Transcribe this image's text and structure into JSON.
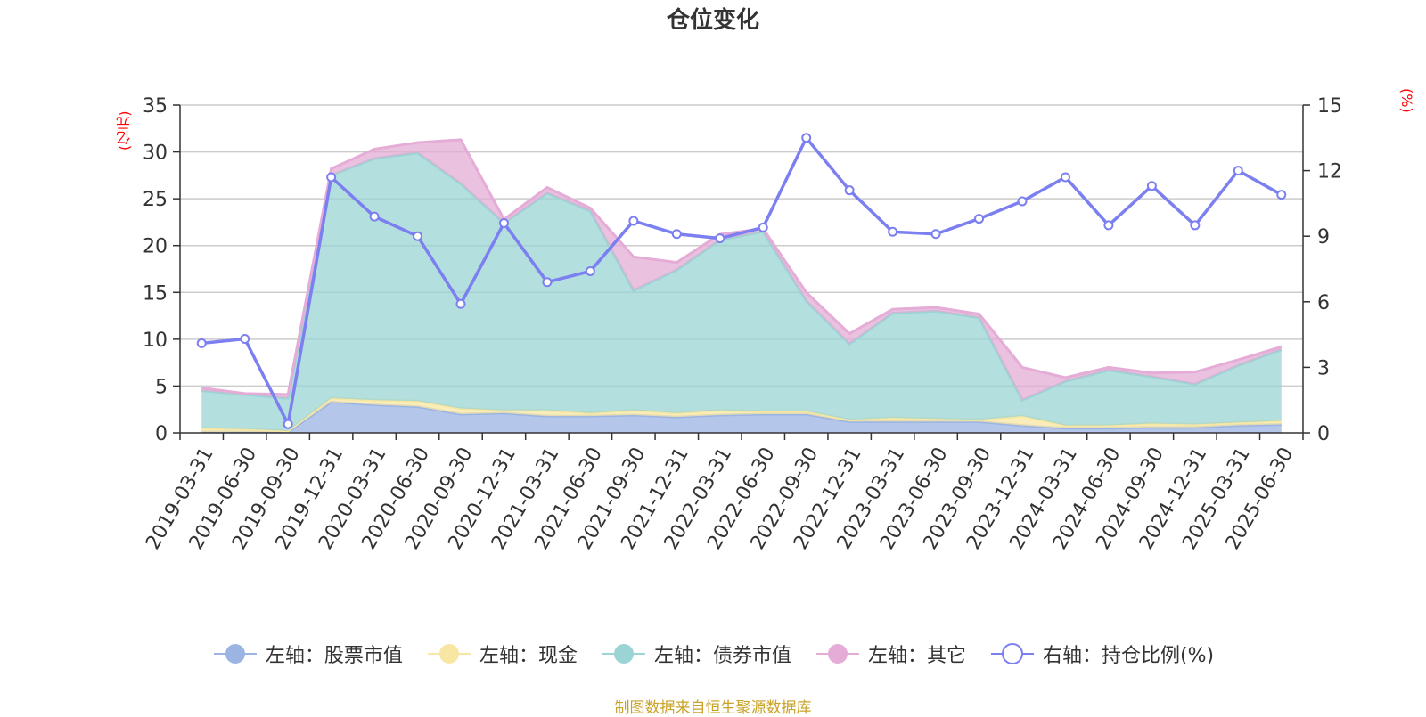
{
  "title": "仓位变化",
  "source_note": "制图数据来自恒生聚源数据库",
  "colors": {
    "stock": "#9bb4e3",
    "cash": "#f8e7a3",
    "bond": "#9ad4d4",
    "other": "#e4acd6",
    "ratio": "#7b7ff0",
    "grid": "#cccccc",
    "axis": "#333333",
    "unit": "#ff0000",
    "source": "#c9a227"
  },
  "chart_data": {
    "type": "area",
    "title": "仓位变化",
    "categories": [
      "2019-03-31",
      "2019-06-30",
      "2019-09-30",
      "2019-12-31",
      "2020-03-31",
      "2020-06-30",
      "2020-09-30",
      "2020-12-31",
      "2021-03-31",
      "2021-06-30",
      "2021-09-30",
      "2021-12-31",
      "2022-03-31",
      "2022-06-30",
      "2022-09-30",
      "2022-12-31",
      "2023-03-31",
      "2023-06-30",
      "2023-09-30",
      "2023-12-31",
      "2024-03-31",
      "2024-06-30",
      "2024-09-30",
      "2024-12-31",
      "2025-03-31",
      "2025-06-30"
    ],
    "y_left": {
      "unit": "(亿元)",
      "range": [
        0,
        35
      ],
      "ticks": [
        0,
        5,
        10,
        15,
        20,
        25,
        30,
        35
      ]
    },
    "y_right": {
      "unit": "(%)",
      "range": [
        0,
        15
      ],
      "ticks": [
        0,
        3,
        6,
        9,
        12,
        15
      ]
    },
    "grid": true,
    "legend_position": "bottom",
    "stacked": true,
    "series": [
      {
        "key": "stock",
        "name": "左轴：股票市值",
        "axis": "left",
        "kind": "area",
        "values": [
          0.1,
          0.1,
          0.1,
          3.3,
          3.0,
          2.8,
          2.0,
          2.1,
          1.8,
          1.8,
          1.9,
          1.7,
          1.9,
          2.0,
          2.0,
          1.2,
          1.2,
          1.2,
          1.2,
          0.8,
          0.5,
          0.5,
          0.6,
          0.6,
          0.8,
          0.9
        ]
      },
      {
        "key": "cash",
        "name": "左轴：现金",
        "axis": "left",
        "kind": "area",
        "values": [
          0.4,
          0.3,
          0.1,
          0.4,
          0.5,
          0.6,
          0.6,
          0.3,
          0.6,
          0.3,
          0.5,
          0.4,
          0.5,
          0.3,
          0.3,
          0.2,
          0.4,
          0.3,
          0.2,
          1.0,
          0.3,
          0.3,
          0.4,
          0.3,
          0.3,
          0.4
        ]
      },
      {
        "key": "bond",
        "name": "左轴：债券市值",
        "axis": "left",
        "kind": "area",
        "values": [
          4.0,
          3.7,
          3.5,
          23.8,
          25.8,
          26.5,
          24.0,
          20.0,
          23.2,
          21.6,
          12.8,
          15.3,
          18.2,
          19.2,
          11.8,
          8.1,
          11.2,
          11.5,
          10.9,
          1.7,
          4.7,
          5.9,
          5.0,
          4.3,
          6.1,
          7.6
        ]
      },
      {
        "key": "other",
        "name": "左轴：其它",
        "axis": "left",
        "kind": "area",
        "values": [
          0.3,
          0.1,
          0.4,
          0.7,
          1.0,
          1.1,
          4.7,
          0.4,
          0.6,
          0.3,
          3.6,
          0.8,
          0.6,
          0.3,
          0.9,
          1.1,
          0.4,
          0.4,
          0.4,
          3.5,
          0.4,
          0.3,
          0.4,
          1.3,
          0.6,
          0.3
        ]
      },
      {
        "key": "ratio",
        "name": "右轴：持仓比例(%)",
        "axis": "right",
        "kind": "line",
        "values": [
          4.1,
          4.3,
          0.4,
          11.7,
          9.9,
          9.0,
          5.9,
          9.6,
          6.9,
          7.4,
          9.7,
          9.1,
          8.9,
          9.4,
          13.5,
          11.1,
          9.2,
          9.1,
          9.8,
          10.6,
          11.7,
          9.5,
          11.3,
          9.5,
          12.0,
          10.9
        ]
      }
    ]
  }
}
